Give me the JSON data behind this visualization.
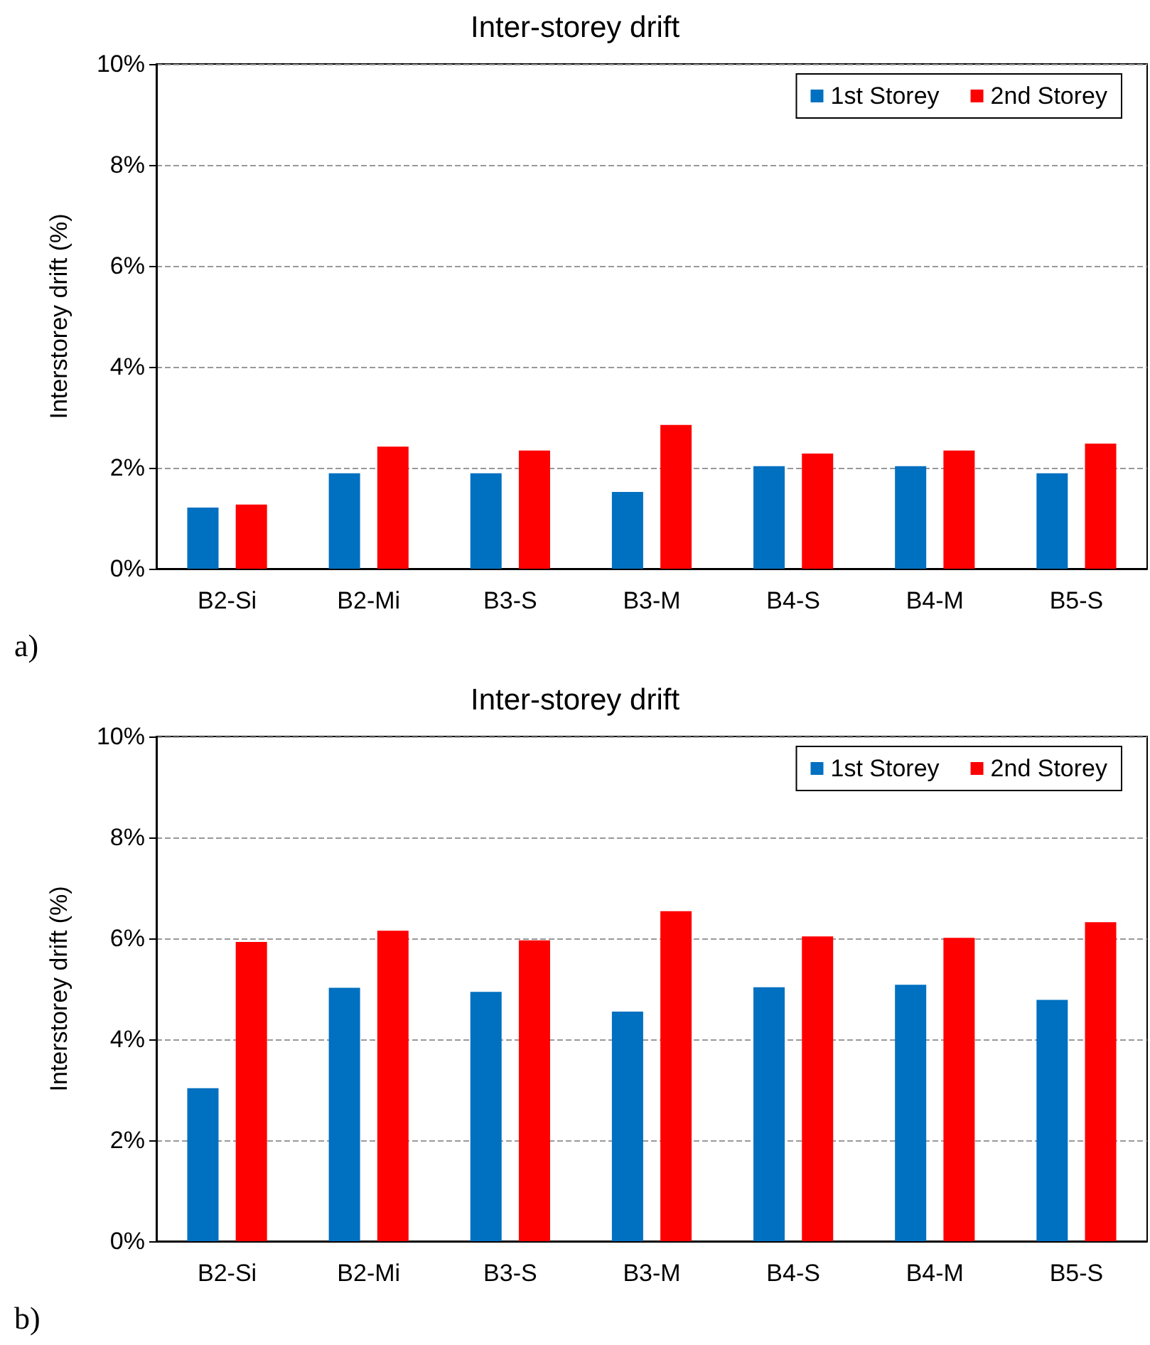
{
  "chart_data": [
    {
      "type": "bar",
      "title": "Inter-storey drift",
      "ylabel": "Interstorey drift (%)",
      "categories": [
        "B2-Si",
        "B2-Mi",
        "B3-S",
        "B3-M",
        "B4-S",
        "B4-M",
        "B5-S"
      ],
      "series": [
        {
          "name": "1st Storey",
          "color": "#0070c0",
          "values": [
            1.21,
            1.89,
            1.89,
            1.52,
            2.03,
            2.03,
            1.89
          ]
        },
        {
          "name": "2nd Storey",
          "color": "#ff0000",
          "values": [
            1.27,
            2.42,
            2.34,
            2.85,
            2.28,
            2.34,
            2.48
          ]
        }
      ],
      "ylim": [
        0,
        10
      ],
      "yticks": [
        {
          "value": 0,
          "label": "0%"
        },
        {
          "value": 2,
          "label": "2%"
        },
        {
          "value": 4,
          "label": "4%"
        },
        {
          "value": 6,
          "label": "6%"
        },
        {
          "value": 8,
          "label": "8%"
        },
        {
          "value": 10,
          "label": "10%"
        }
      ],
      "grid": "y",
      "legend": "top right",
      "annotations": [
        "a)"
      ]
    },
    {
      "type": "bar",
      "title": "Inter-storey drift",
      "ylabel": "Interstorey drift (%)",
      "categories": [
        "B2-Si",
        "B2-Mi",
        "B3-S",
        "B3-M",
        "B4-S",
        "B4-M",
        "B5-S"
      ],
      "series": [
        {
          "name": "1st Storey",
          "color": "#0070c0",
          "values": [
            3.03,
            5.02,
            4.94,
            4.55,
            5.03,
            5.08,
            4.78
          ]
        },
        {
          "name": "2nd Storey",
          "color": "#ff0000",
          "values": [
            5.93,
            6.15,
            5.96,
            6.54,
            6.04,
            6.01,
            6.32
          ]
        }
      ],
      "ylim": [
        0,
        10
      ],
      "yticks": [
        {
          "value": 0,
          "label": "0%"
        },
        {
          "value": 2,
          "label": "2%"
        },
        {
          "value": 4,
          "label": "4%"
        },
        {
          "value": 6,
          "label": "6%"
        },
        {
          "value": 8,
          "label": "8%"
        },
        {
          "value": 10,
          "label": "10%"
        }
      ],
      "grid": "y",
      "legend": "top right",
      "annotations": [
        "b)"
      ]
    }
  ]
}
